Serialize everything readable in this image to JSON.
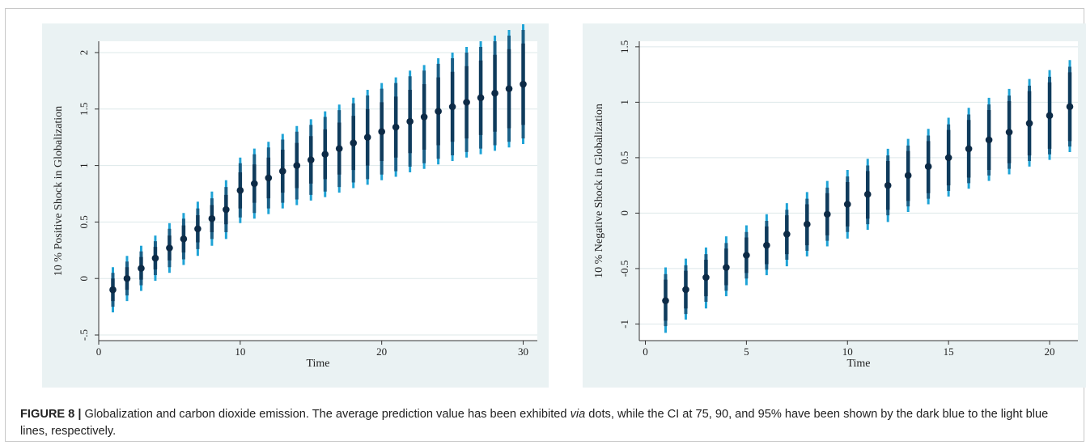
{
  "caption": {
    "figure_label": "FIGURE 8",
    "separator": "|",
    "text_before": "Globalization and carbon dioxide emission. The average prediction value has been exhibited ",
    "text_italic": "via",
    "text_after": " dots, while the CI at 75, 90, and 95% have been shown by the dark blue to the light blue lines, respectively."
  },
  "colors": {
    "panel_background": "#eaf2f3",
    "ci95": "#1fa3d6",
    "ci90": "#1b5f86",
    "ci75": "#0f3b5c",
    "point": "#0d2b47"
  },
  "chart_data": [
    {
      "type": "scatter",
      "title": "",
      "xlabel": "Time",
      "ylabel": "10 % Positive Shock in Globalization",
      "xlim": [
        0,
        31
      ],
      "ylim": [
        -0.55,
        2.1
      ],
      "xticks": [
        0,
        10,
        20,
        30
      ],
      "yticks": [
        -0.5,
        0,
        0.5,
        1,
        1.5,
        2
      ],
      "ytick_labels": [
        "-.5",
        "0",
        "0.5",
        "1",
        "1.5",
        "2"
      ],
      "grid": true,
      "series": [
        {
          "x": [
            1,
            2,
            3,
            4,
            5,
            6,
            7,
            8,
            9,
            10,
            11,
            12,
            13,
            14,
            15,
            16,
            17,
            18,
            19,
            20,
            21,
            22,
            23,
            24,
            25,
            26,
            27,
            28,
            29,
            30
          ],
          "mean": [
            -0.1,
            0.0,
            0.09,
            0.18,
            0.27,
            0.35,
            0.44,
            0.53,
            0.61,
            0.78,
            0.84,
            0.89,
            0.95,
            1.0,
            1.05,
            1.1,
            1.15,
            1.2,
            1.25,
            1.3,
            1.34,
            1.39,
            1.43,
            1.48,
            1.52,
            1.56,
            1.6,
            1.64,
            1.68,
            1.72
          ],
          "ci75": [
            [
              -0.2,
              0.0
            ],
            [
              -0.1,
              0.1
            ],
            [
              -0.01,
              0.19
            ],
            [
              0.08,
              0.28
            ],
            [
              0.16,
              0.38
            ],
            [
              0.23,
              0.47
            ],
            [
              0.32,
              0.56
            ],
            [
              0.41,
              0.65
            ],
            [
              0.48,
              0.74
            ],
            [
              0.62,
              0.94
            ],
            [
              0.67,
              1.01
            ],
            [
              0.71,
              1.07
            ],
            [
              0.76,
              1.14
            ],
            [
              0.8,
              1.2
            ],
            [
              0.84,
              1.26
            ],
            [
              0.88,
              1.32
            ],
            [
              0.92,
              1.38
            ],
            [
              0.96,
              1.44
            ],
            [
              1.0,
              1.5
            ],
            [
              1.04,
              1.56
            ],
            [
              1.07,
              1.61
            ],
            [
              1.11,
              1.67
            ],
            [
              1.14,
              1.72
            ],
            [
              1.18,
              1.78
            ],
            [
              1.21,
              1.83
            ],
            [
              1.24,
              1.88
            ],
            [
              1.27,
              1.93
            ],
            [
              1.3,
              1.98
            ],
            [
              1.33,
              2.03
            ],
            [
              1.36,
              2.08
            ]
          ],
          "ci90": [
            [
              -0.25,
              0.05
            ],
            [
              -0.15,
              0.15
            ],
            [
              -0.06,
              0.24
            ],
            [
              0.03,
              0.33
            ],
            [
              0.1,
              0.44
            ],
            [
              0.17,
              0.53
            ],
            [
              0.26,
              0.62
            ],
            [
              0.35,
              0.71
            ],
            [
              0.41,
              0.81
            ],
            [
              0.54,
              1.02
            ],
            [
              0.58,
              1.1
            ],
            [
              0.62,
              1.16
            ],
            [
              0.67,
              1.23
            ],
            [
              0.7,
              1.3
            ],
            [
              0.74,
              1.36
            ],
            [
              0.77,
              1.43
            ],
            [
              0.81,
              1.49
            ],
            [
              0.85,
              1.55
            ],
            [
              0.88,
              1.62
            ],
            [
              0.92,
              1.68
            ],
            [
              0.95,
              1.73
            ],
            [
              0.99,
              1.79
            ],
            [
              1.02,
              1.84
            ],
            [
              1.06,
              1.9
            ],
            [
              1.09,
              1.95
            ],
            [
              1.12,
              2.0
            ],
            [
              1.15,
              2.05
            ],
            [
              1.18,
              2.1
            ],
            [
              1.21,
              2.15
            ],
            [
              1.24,
              2.2
            ]
          ],
          "ci95": [
            [
              -0.3,
              0.1
            ],
            [
              -0.2,
              0.2
            ],
            [
              -0.11,
              0.29
            ],
            [
              -0.02,
              0.38
            ],
            [
              0.05,
              0.49
            ],
            [
              0.12,
              0.58
            ],
            [
              0.2,
              0.68
            ],
            [
              0.29,
              0.77
            ],
            [
              0.35,
              0.87
            ],
            [
              0.49,
              1.07
            ],
            [
              0.53,
              1.15
            ],
            [
              0.57,
              1.21
            ],
            [
              0.62,
              1.28
            ],
            [
              0.65,
              1.35
            ],
            [
              0.69,
              1.41
            ],
            [
              0.72,
              1.48
            ],
            [
              0.76,
              1.54
            ],
            [
              0.8,
              1.6
            ],
            [
              0.83,
              1.67
            ],
            [
              0.87,
              1.73
            ],
            [
              0.9,
              1.78
            ],
            [
              0.94,
              1.84
            ],
            [
              0.97,
              1.89
            ],
            [
              1.01,
              1.95
            ],
            [
              1.04,
              2.0
            ],
            [
              1.07,
              2.05
            ],
            [
              1.1,
              2.1
            ],
            [
              1.13,
              2.15
            ],
            [
              1.16,
              2.2
            ],
            [
              1.19,
              2.25
            ]
          ]
        }
      ]
    },
    {
      "type": "scatter",
      "title": "",
      "xlabel": "Time",
      "ylabel": "10 % Negative Shock in Globalization",
      "xlim": [
        -0.3,
        21.4
      ],
      "ylim": [
        -1.15,
        1.55
      ],
      "xticks": [
        0,
        5,
        10,
        15,
        20
      ],
      "yticks": [
        -1,
        -0.5,
        0,
        0.5,
        1,
        1.5
      ],
      "ytick_labels": [
        "-1",
        "-0.5",
        "0",
        "0.5",
        "1",
        "1.5"
      ],
      "grid": true,
      "series": [
        {
          "x": [
            1,
            2,
            3,
            4,
            5,
            6,
            7,
            8,
            9,
            10,
            11,
            12,
            13,
            14,
            15,
            16,
            17,
            18,
            19,
            20,
            21
          ],
          "mean": [
            -0.79,
            -0.69,
            -0.58,
            -0.49,
            -0.38,
            -0.29,
            -0.19,
            -0.1,
            -0.01,
            0.08,
            0.17,
            0.25,
            0.34,
            0.42,
            0.5,
            0.58,
            0.66,
            0.73,
            0.81,
            0.88,
            0.96
          ],
          "ci75": [
            [
              -0.97,
              -0.6
            ],
            [
              -0.86,
              -0.52
            ],
            [
              -0.75,
              -0.42
            ],
            [
              -0.65,
              -0.32
            ],
            [
              -0.54,
              -0.22
            ],
            [
              -0.46,
              -0.12
            ],
            [
              -0.37,
              -0.02
            ],
            [
              -0.29,
              0.08
            ],
            [
              -0.2,
              0.18
            ],
            [
              -0.12,
              0.28
            ],
            [
              -0.05,
              0.38
            ],
            [
              0.03,
              0.47
            ],
            [
              0.11,
              0.56
            ],
            [
              0.18,
              0.65
            ],
            [
              0.25,
              0.75
            ],
            [
              0.32,
              0.84
            ],
            [
              0.39,
              0.93
            ],
            [
              0.45,
              1.01
            ],
            [
              0.52,
              1.1
            ],
            [
              0.58,
              1.18
            ],
            [
              0.65,
              1.27
            ]
          ],
          "ci90": [
            [
              -1.02,
              -0.55
            ],
            [
              -0.91,
              -0.47
            ],
            [
              -0.8,
              -0.37
            ],
            [
              -0.7,
              -0.27
            ],
            [
              -0.59,
              -0.17
            ],
            [
              -0.51,
              -0.07
            ],
            [
              -0.42,
              0.03
            ],
            [
              -0.34,
              0.13
            ],
            [
              -0.25,
              0.23
            ],
            [
              -0.17,
              0.33
            ],
            [
              -0.1,
              0.43
            ],
            [
              -0.02,
              0.52
            ],
            [
              0.06,
              0.61
            ],
            [
              0.13,
              0.7
            ],
            [
              0.2,
              0.8
            ],
            [
              0.27,
              0.89
            ],
            [
              0.34,
              0.98
            ],
            [
              0.4,
              1.06
            ],
            [
              0.47,
              1.15
            ],
            [
              0.53,
              1.23
            ],
            [
              0.6,
              1.32
            ]
          ],
          "ci95": [
            [
              -1.08,
              -0.49
            ],
            [
              -0.96,
              -0.41
            ],
            [
              -0.86,
              -0.31
            ],
            [
              -0.75,
              -0.21
            ],
            [
              -0.65,
              -0.11
            ],
            [
              -0.56,
              -0.01
            ],
            [
              -0.48,
              0.09
            ],
            [
              -0.39,
              0.19
            ],
            [
              -0.3,
              0.29
            ],
            [
              -0.23,
              0.39
            ],
            [
              -0.15,
              0.49
            ],
            [
              -0.08,
              0.58
            ],
            [
              0.01,
              0.67
            ],
            [
              0.08,
              0.76
            ],
            [
              0.15,
              0.86
            ],
            [
              0.22,
              0.95
            ],
            [
              0.29,
              1.04
            ],
            [
              0.35,
              1.12
            ],
            [
              0.42,
              1.21
            ],
            [
              0.48,
              1.29
            ],
            [
              0.55,
              1.38
            ]
          ]
        }
      ]
    }
  ]
}
